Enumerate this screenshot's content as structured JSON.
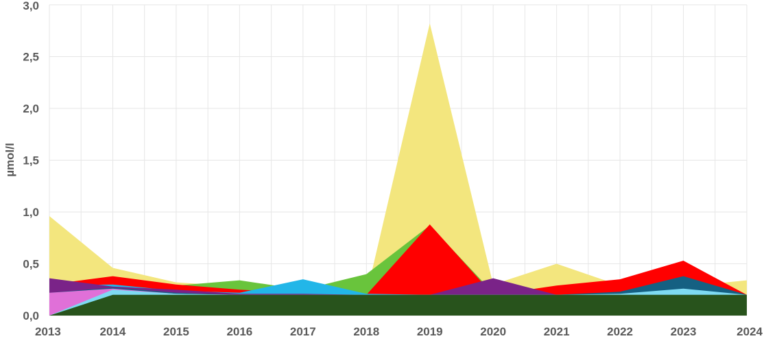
{
  "chart_data": {
    "type": "area",
    "title": "",
    "xlabel": "",
    "ylabel": "µmol/l",
    "x": [
      "2013",
      "2014",
      "2015",
      "2016",
      "2017",
      "2018",
      "2019",
      "2020",
      "2021",
      "2022",
      "2023",
      "2024"
    ],
    "ylim": [
      0,
      3.0
    ],
    "yticks": [
      "0,0",
      "0,5",
      "1,0",
      "1,5",
      "2,0",
      "2,5",
      "3,0"
    ],
    "grid": true,
    "legend": "none",
    "series": [
      {
        "color": "#F3E67E",
        "values": [
          0.96,
          0.46,
          0.32,
          0.28,
          0.22,
          0.2,
          2.82,
          0.3,
          0.5,
          0.29,
          0.28,
          0.34
        ]
      },
      {
        "color": "#69C43C",
        "values": [
          0.25,
          0.34,
          0.29,
          0.34,
          0.25,
          0.4,
          0.87,
          0.22,
          0.22,
          0.22,
          0.24,
          0.2
        ]
      },
      {
        "color": "#FF0000",
        "values": [
          0.3,
          0.38,
          0.3,
          0.25,
          0.22,
          0.2,
          0.88,
          0.2,
          0.29,
          0.35,
          0.53,
          0.2
        ]
      },
      {
        "color": "#22B6E8",
        "values": [
          0.29,
          0.3,
          0.24,
          0.22,
          0.35,
          0.21,
          0.2,
          0.2,
          0.2,
          0.22,
          0.29,
          0.2
        ]
      },
      {
        "color": "#7A2388",
        "values": [
          0.36,
          0.28,
          0.25,
          0.21,
          0.21,
          0.2,
          0.2,
          0.36,
          0.2,
          0.22,
          0.22,
          0.2
        ]
      },
      {
        "color": "#156082",
        "values": [
          0.22,
          0.27,
          0.22,
          0.2,
          0.2,
          0.2,
          0.2,
          0.2,
          0.2,
          0.23,
          0.38,
          0.2
        ]
      },
      {
        "color": "#E070D8",
        "values": [
          0.22,
          0.26,
          0.21,
          0.2,
          0.2,
          0.2,
          0.2,
          0.2,
          0.2,
          0.2,
          0.2,
          0.2
        ]
      },
      {
        "color": "#7EDAF2",
        "values": [
          0.0,
          0.25,
          0.21,
          0.2,
          0.2,
          0.2,
          0.2,
          0.2,
          0.2,
          0.21,
          0.26,
          0.2
        ]
      },
      {
        "color": "#28531C",
        "values": [
          0.0,
          0.2,
          0.2,
          0.2,
          0.2,
          0.2,
          0.2,
          0.2,
          0.2,
          0.2,
          0.2,
          0.2
        ]
      }
    ]
  }
}
